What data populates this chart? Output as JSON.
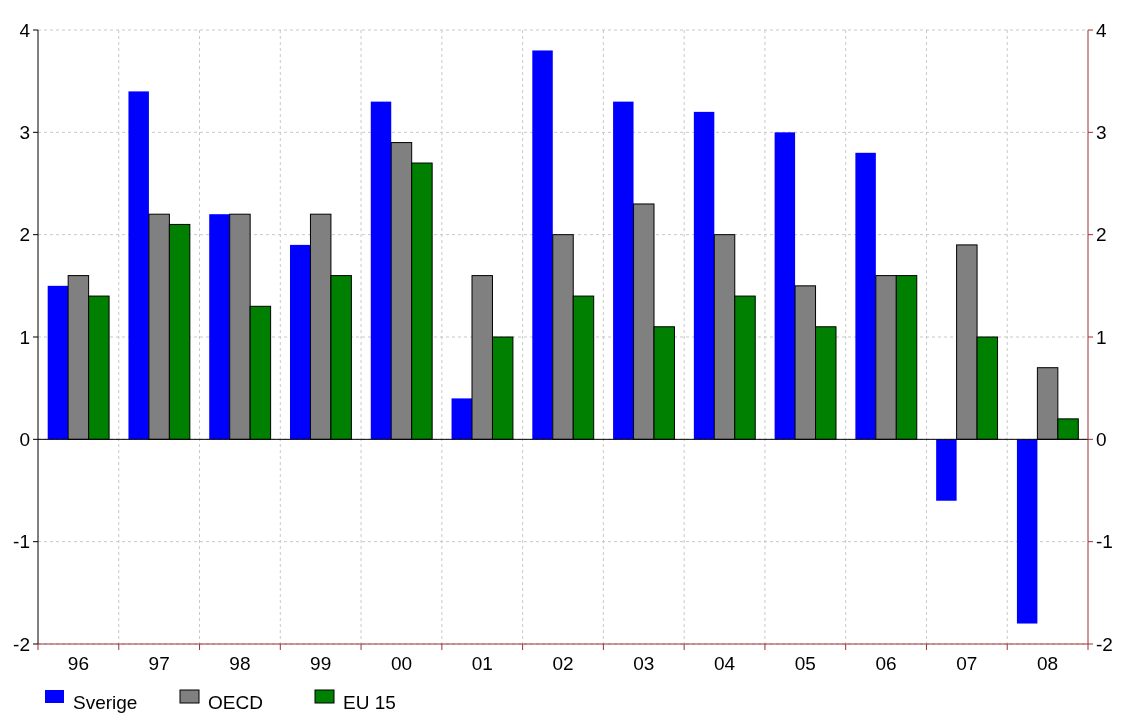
{
  "chart_data": {
    "type": "bar",
    "categories": [
      "96",
      "97",
      "98",
      "99",
      "00",
      "01",
      "02",
      "03",
      "04",
      "05",
      "06",
      "07",
      "08"
    ],
    "series": [
      {
        "name": "Sverige",
        "color": "#0000ff",
        "values": [
          1.5,
          3.4,
          2.2,
          1.9,
          3.3,
          0.4,
          3.8,
          3.3,
          3.2,
          3.0,
          2.8,
          -0.6,
          -1.8
        ]
      },
      {
        "name": "OECD",
        "color": "#808080",
        "values": [
          1.6,
          2.2,
          2.2,
          2.2,
          2.9,
          1.6,
          2.0,
          2.3,
          2.0,
          1.5,
          1.6,
          1.9,
          0.7
        ]
      },
      {
        "name": "EU 15",
        "color": "#008000",
        "values": [
          1.4,
          2.1,
          1.3,
          1.6,
          2.7,
          1.0,
          1.4,
          1.1,
          1.4,
          1.1,
          1.6,
          1.0,
          0.2
        ]
      }
    ],
    "ylim": [
      -2,
      4
    ],
    "yticks": [
      -2,
      -1,
      0,
      1,
      2,
      3,
      4
    ],
    "y2lim": [
      -2,
      4
    ],
    "y2ticks": [
      -2,
      -1,
      0,
      1,
      2,
      3,
      4
    ],
    "grid": true,
    "legend": "bottom left"
  }
}
